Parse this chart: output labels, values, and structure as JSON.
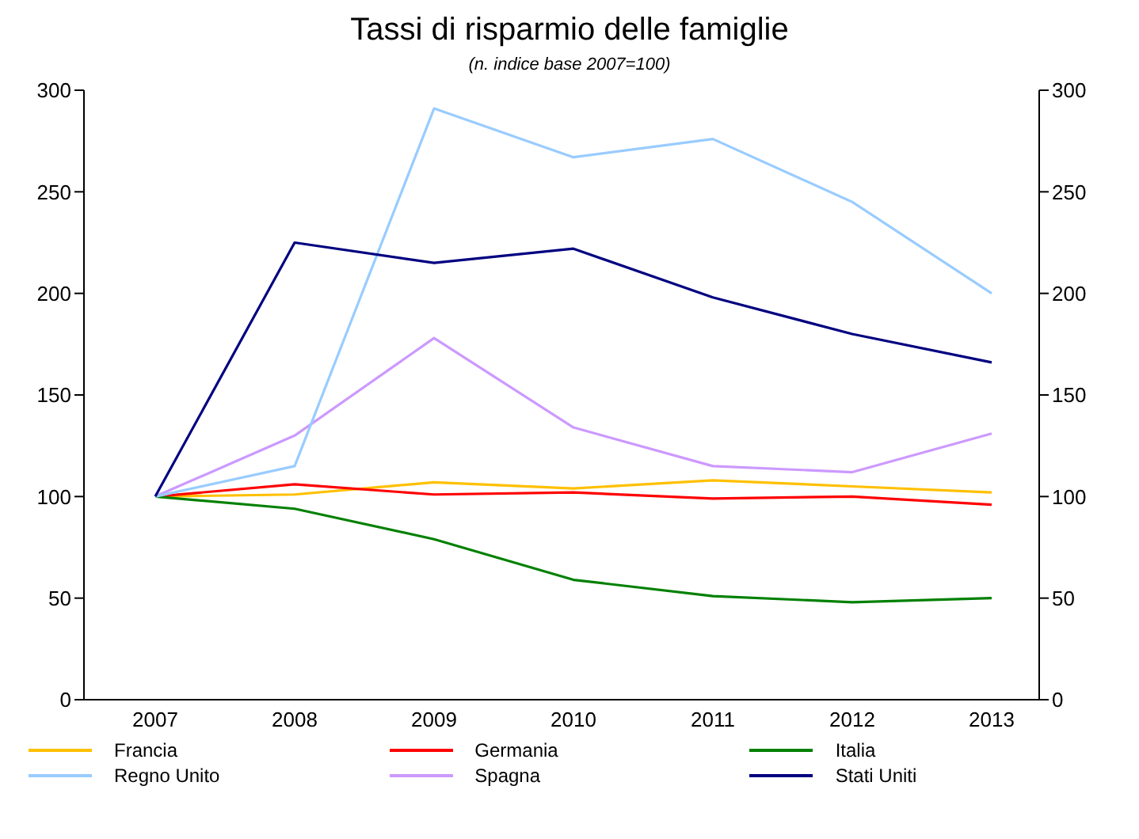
{
  "chart_data": {
    "type": "line",
    "title": "Tassi di risparmio delle famiglie",
    "subtitle": "(n. indice base 2007=100)",
    "categories": [
      "2007",
      "2008",
      "2009",
      "2010",
      "2011",
      "2012",
      "2013"
    ],
    "series": [
      {
        "name": "Francia",
        "color": "#ffc000",
        "values": [
          100,
          101,
          107,
          104,
          108,
          105,
          102
        ]
      },
      {
        "name": "Germania",
        "color": "#ff0000",
        "values": [
          100,
          106,
          101,
          102,
          99,
          100,
          96
        ]
      },
      {
        "name": "Italia",
        "color": "#008000",
        "values": [
          100,
          94,
          79,
          59,
          51,
          48,
          50
        ]
      },
      {
        "name": "Spagna",
        "color": "#cc99ff",
        "values": [
          100,
          130,
          178,
          134,
          115,
          112,
          131
        ]
      },
      {
        "name": "Regno Unito",
        "color": "#99ccff",
        "values": [
          100,
          115,
          291,
          267,
          276,
          245,
          200
        ]
      },
      {
        "name": "Stati Uniti",
        "color": "#000080",
        "values": [
          100,
          225,
          215,
          222,
          198,
          180,
          166
        ]
      }
    ],
    "ylim": [
      0,
      300
    ],
    "yticks": [
      0,
      50,
      100,
      150,
      200,
      250,
      300
    ],
    "y2lim": [
      0,
      300
    ],
    "y2ticks": [
      0,
      50,
      100,
      150,
      200,
      250,
      300
    ],
    "legend": "bottom",
    "marker": "none",
    "line_style": "solid",
    "grid": false
  }
}
